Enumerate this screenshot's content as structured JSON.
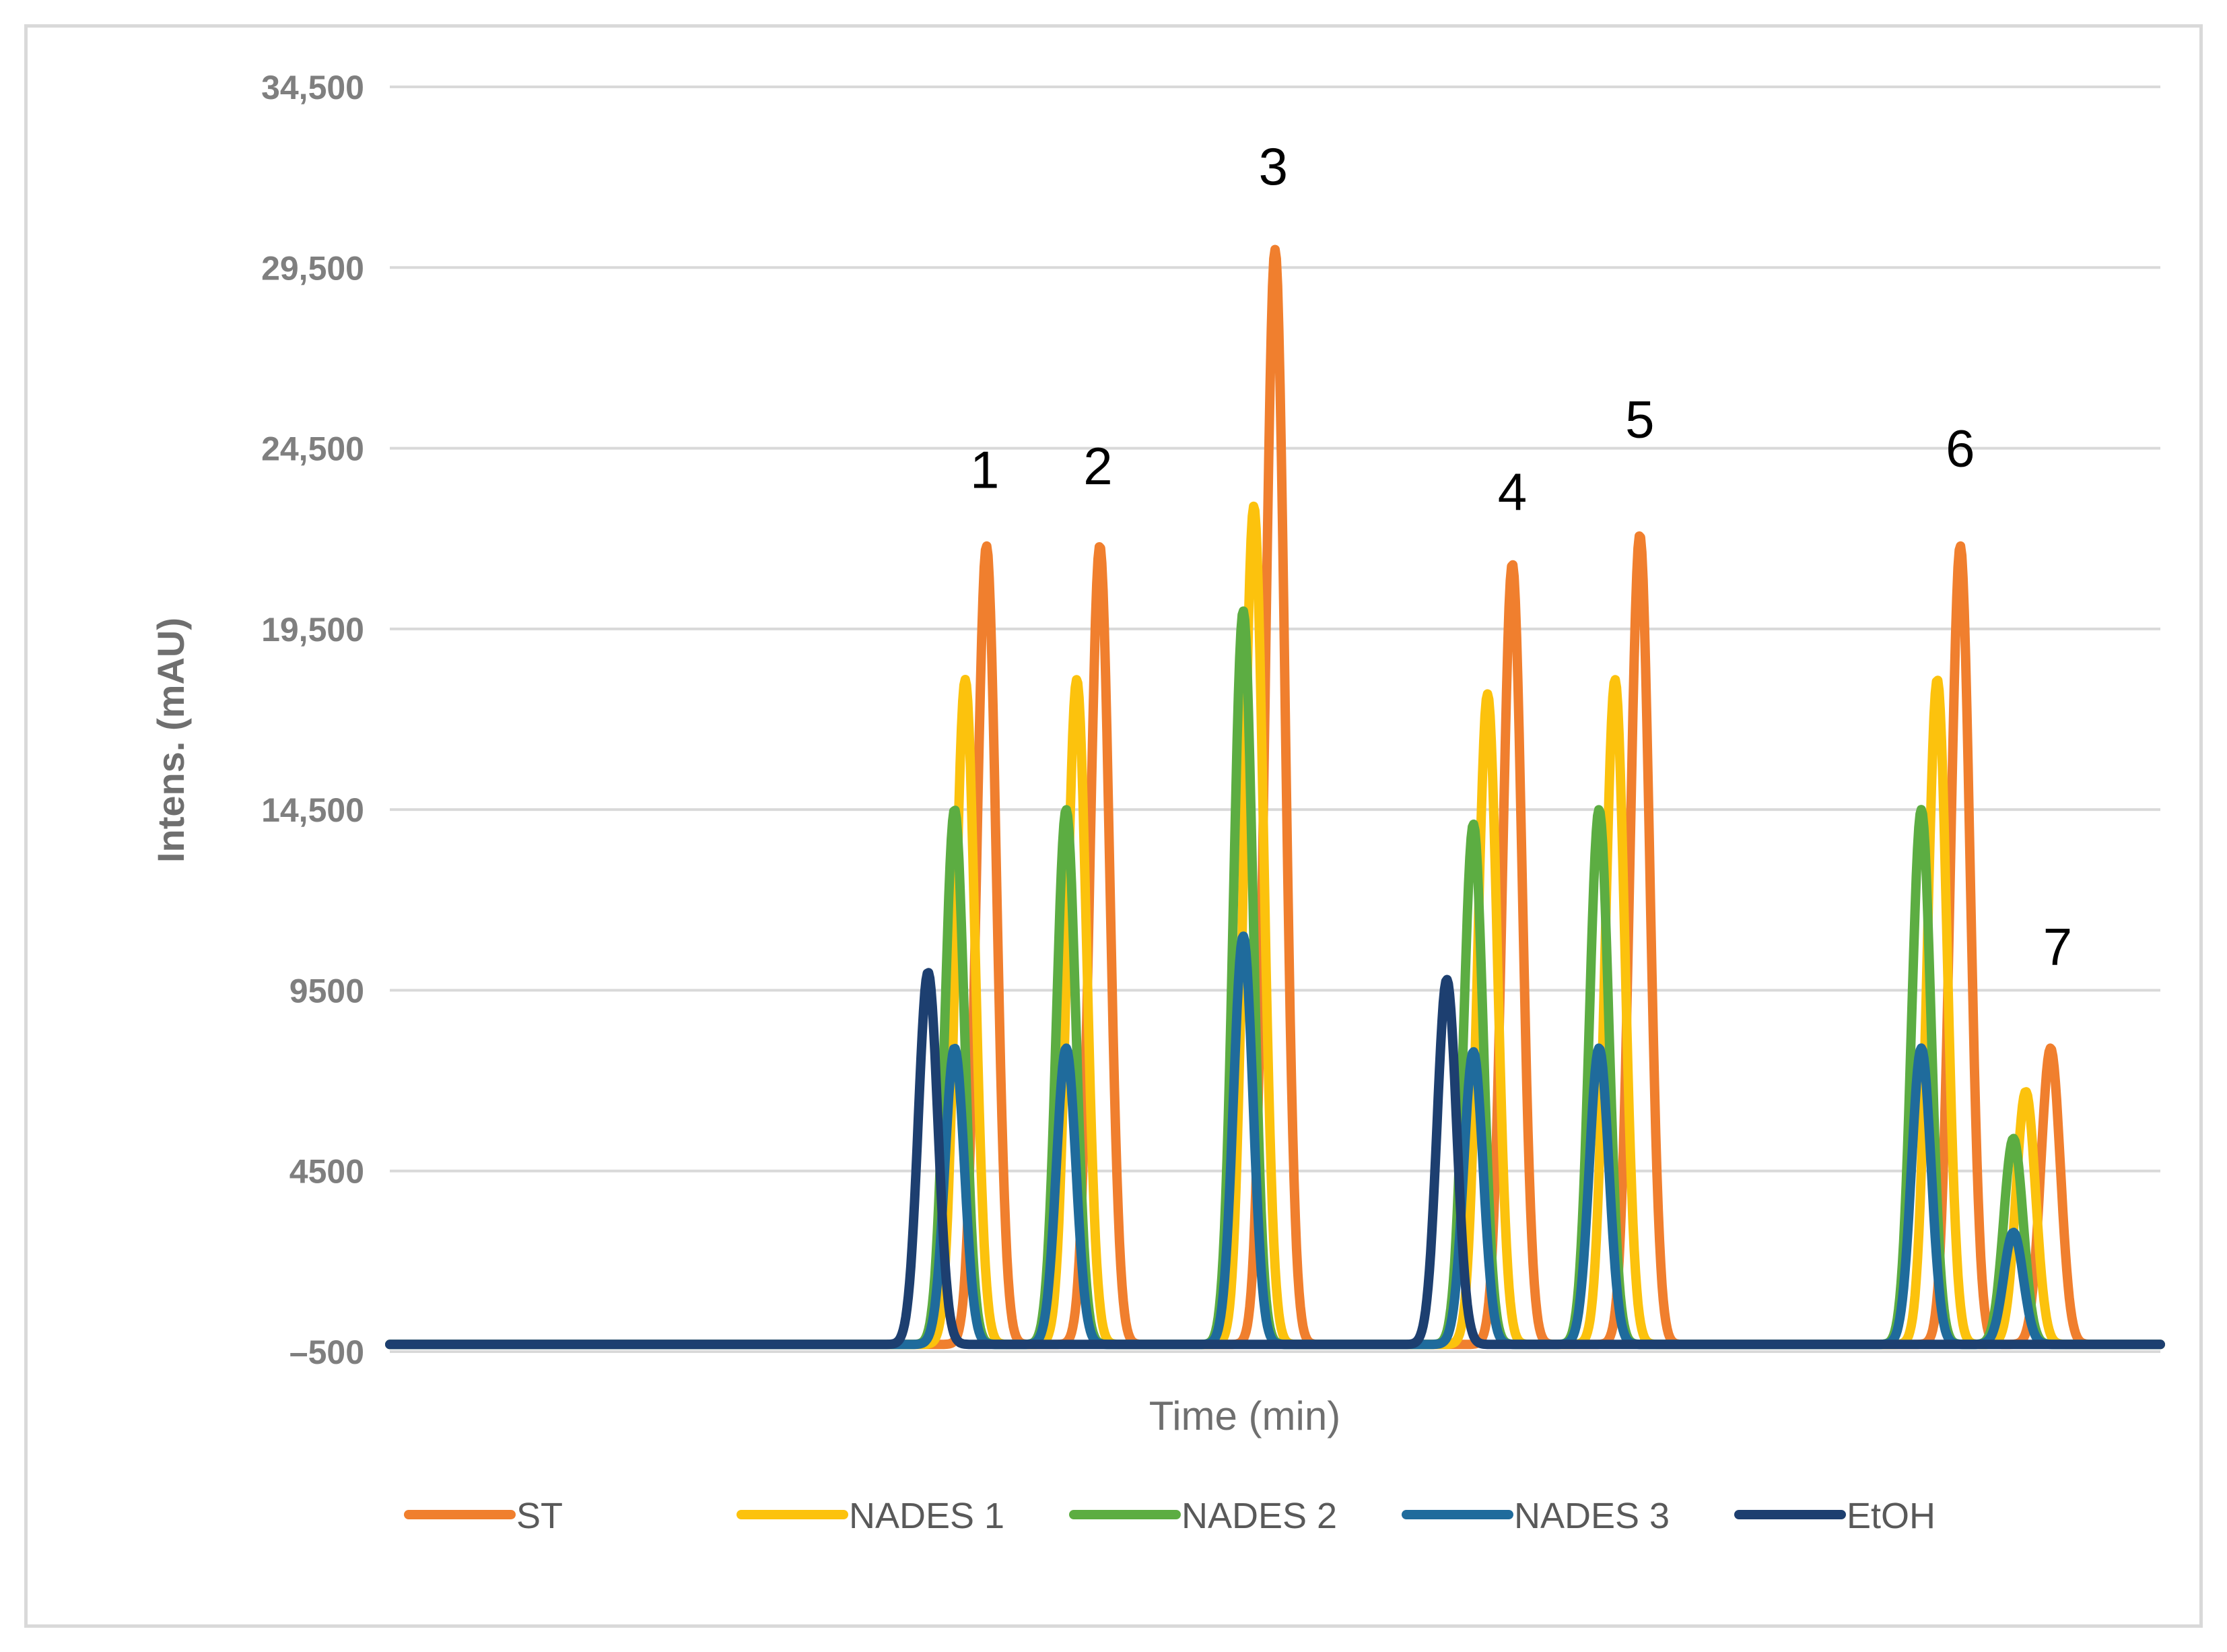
{
  "chart_data": {
    "type": "line",
    "title": "",
    "xlabel": "Time (min)",
    "ylabel": "Intens. (mAU)",
    "ylim": [
      -500,
      34500
    ],
    "xlim": [
      0,
      100
    ],
    "y_ticks": [
      -500,
      4500,
      9500,
      14500,
      19500,
      24500,
      29500,
      34500
    ],
    "y_tick_labels": [
      "–500",
      "4500",
      "9500",
      "14,500",
      "19,500",
      "24,500",
      "29,500",
      "34,500"
    ],
    "grid": true,
    "legend_position": "bottom",
    "colors": {
      "ST": "#f07f2e",
      "NADES 1": "#fcc20d",
      "NADES 2": "#5cad42",
      "NADES 3": "#1f6b9c",
      "EtOH": "#1d3f70"
    },
    "baseline": -300,
    "series": [
      {
        "name": "ST",
        "peaks": [
          {
            "x": 33.7,
            "y": 21800
          },
          {
            "x": 40.1,
            "y": 21800
          },
          {
            "x": 50.0,
            "y": 30000
          },
          {
            "x": 63.4,
            "y": 21300
          },
          {
            "x": 70.6,
            "y": 22100
          },
          {
            "x": 88.7,
            "y": 21800
          },
          {
            "x": 93.8,
            "y": 7900
          }
        ]
      },
      {
        "name": "NADES 1",
        "peaks": [
          {
            "x": 32.5,
            "y": 18100
          },
          {
            "x": 38.8,
            "y": 18100
          },
          {
            "x": 48.8,
            "y": 22900
          },
          {
            "x": 62.0,
            "y": 17700
          },
          {
            "x": 69.2,
            "y": 18100
          },
          {
            "x": 87.4,
            "y": 18100
          },
          {
            "x": 92.4,
            "y": 6700
          }
        ]
      },
      {
        "name": "NADES 2",
        "peaks": [
          {
            "x": 31.9,
            "y": 14500
          },
          {
            "x": 38.2,
            "y": 14500
          },
          {
            "x": 48.2,
            "y": 20000
          },
          {
            "x": 61.2,
            "y": 14100
          },
          {
            "x": 68.3,
            "y": 14500
          },
          {
            "x": 86.5,
            "y": 14500
          },
          {
            "x": 91.7,
            "y": 5400
          }
        ]
      },
      {
        "name": "NADES 3",
        "peaks": [
          {
            "x": 31.9,
            "y": 7900
          },
          {
            "x": 38.2,
            "y": 7900
          },
          {
            "x": 48.2,
            "y": 11000
          },
          {
            "x": 61.2,
            "y": 7800
          },
          {
            "x": 68.3,
            "y": 7900
          },
          {
            "x": 86.5,
            "y": 7900
          },
          {
            "x": 91.7,
            "y": 2800
          }
        ]
      },
      {
        "name": "EtOH",
        "peaks": [
          {
            "x": 30.4,
            "y": 10000
          },
          {
            "x": 59.7,
            "y": 9800
          }
        ]
      }
    ],
    "annotations": [
      {
        "text": "1",
        "x": 33.6,
        "y": 23400
      },
      {
        "text": "2",
        "x": 40.0,
        "y": 23500
      },
      {
        "text": "3",
        "x": 49.9,
        "y": 31800
      },
      {
        "text": "4",
        "x": 63.4,
        "y": 22800
      },
      {
        "text": "5",
        "x": 70.6,
        "y": 24800
      },
      {
        "text": "6",
        "x": 88.7,
        "y": 24000
      },
      {
        "text": "7",
        "x": 94.2,
        "y": 10200
      }
    ]
  }
}
